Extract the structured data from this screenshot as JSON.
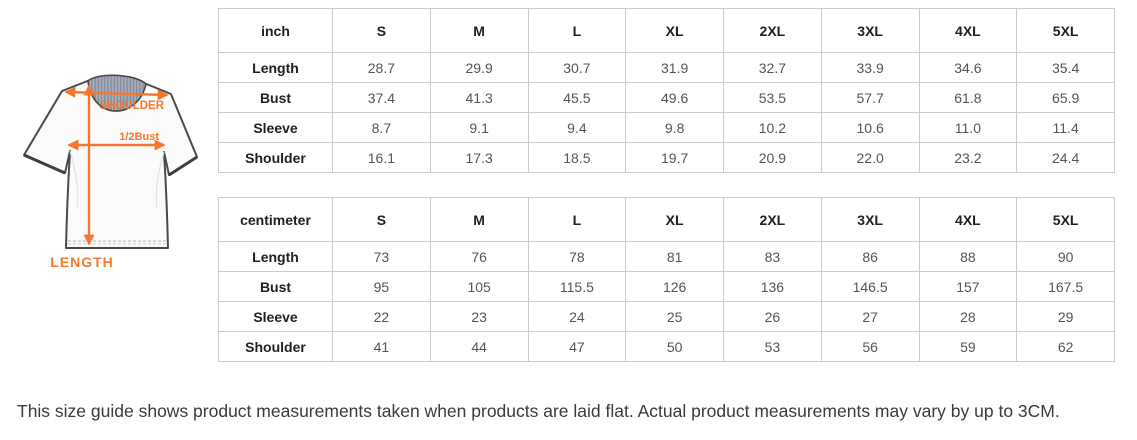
{
  "diagram": {
    "shoulder_label": "SHOULDER",
    "bust_label": "1/2Bust",
    "length_label": "LENGTH",
    "accent_color": "#f4772b"
  },
  "tables": [
    {
      "unit": "inch",
      "sizes": [
        "S",
        "M",
        "L",
        "XL",
        "2XL",
        "3XL",
        "4XL",
        "5XL"
      ],
      "rows": [
        {
          "label": "Length",
          "values": [
            "28.7",
            "29.9",
            "30.7",
            "31.9",
            "32.7",
            "33.9",
            "34.6",
            "35.4"
          ]
        },
        {
          "label": "Bust",
          "values": [
            "37.4",
            "41.3",
            "45.5",
            "49.6",
            "53.5",
            "57.7",
            "61.8",
            "65.9"
          ]
        },
        {
          "label": "Sleeve",
          "values": [
            "8.7",
            "9.1",
            "9.4",
            "9.8",
            "10.2",
            "10.6",
            "11.0",
            "11.4"
          ]
        },
        {
          "label": "Shoulder",
          "values": [
            "16.1",
            "17.3",
            "18.5",
            "19.7",
            "20.9",
            "22.0",
            "23.2",
            "24.4"
          ]
        }
      ]
    },
    {
      "unit": "centimeter",
      "sizes": [
        "S",
        "M",
        "L",
        "XL",
        "2XL",
        "3XL",
        "4XL",
        "5XL"
      ],
      "rows": [
        {
          "label": "Length",
          "values": [
            "73",
            "76",
            "78",
            "81",
            "83",
            "86",
            "88",
            "90"
          ]
        },
        {
          "label": "Bust",
          "values": [
            "95",
            "105",
            "115.5",
            "126",
            "136",
            "146.5",
            "157",
            "167.5"
          ]
        },
        {
          "label": "Sleeve",
          "values": [
            "22",
            "23",
            "24",
            "25",
            "26",
            "27",
            "28",
            "29"
          ]
        },
        {
          "label": "Shoulder",
          "values": [
            "41",
            "44",
            "47",
            "50",
            "53",
            "56",
            "59",
            "62"
          ]
        }
      ]
    }
  ],
  "note": "This size guide shows product measurements taken when products are laid flat. Actual product measurements may vary by up to 3CM."
}
